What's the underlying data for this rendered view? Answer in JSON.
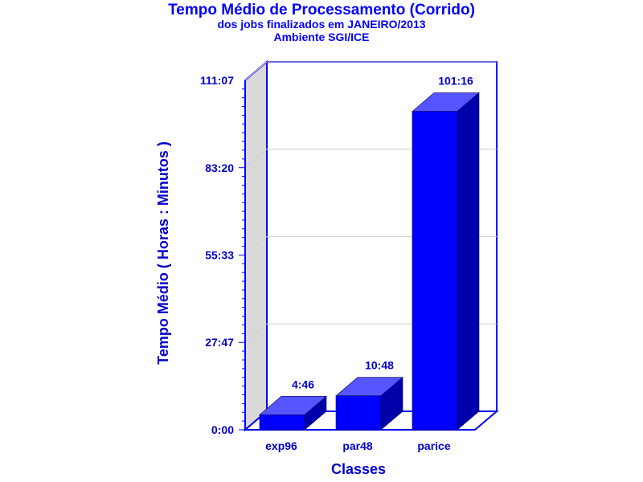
{
  "chart_data": {
    "type": "bar",
    "title": "Tempo Médio de Processamento (Corrido)",
    "subtitle": "dos jobs finalizados em JANEIRO/2013",
    "subtitle2": "Ambiente SGI/ICE",
    "xlabel": "Classes",
    "ylabel": "Tempo Médio ( Horas : Minutos )",
    "categories": [
      "exp96",
      "par48",
      "parice"
    ],
    "values_minutes": [
      286,
      648,
      6076
    ],
    "data_labels": [
      "4:46",
      "10:48",
      "101:16"
    ],
    "y_ticks": [
      "0:00",
      "27:47",
      "55:33",
      "83:20",
      "111:07"
    ],
    "y_tick_minutes": [
      0,
      1667,
      3333,
      5000,
      6667
    ],
    "ylim_minutes": [
      0,
      6667
    ],
    "grid": true,
    "three_d": true,
    "colors": {
      "text": "#0000cc",
      "title": "#0000ff",
      "axis": "#0000ff",
      "bar_front": "#0000ff",
      "bar_top": "#5555ff",
      "bar_side": "#0000aa",
      "back_wall": "#d9d9d9",
      "grid": "#d0d0d0"
    }
  }
}
